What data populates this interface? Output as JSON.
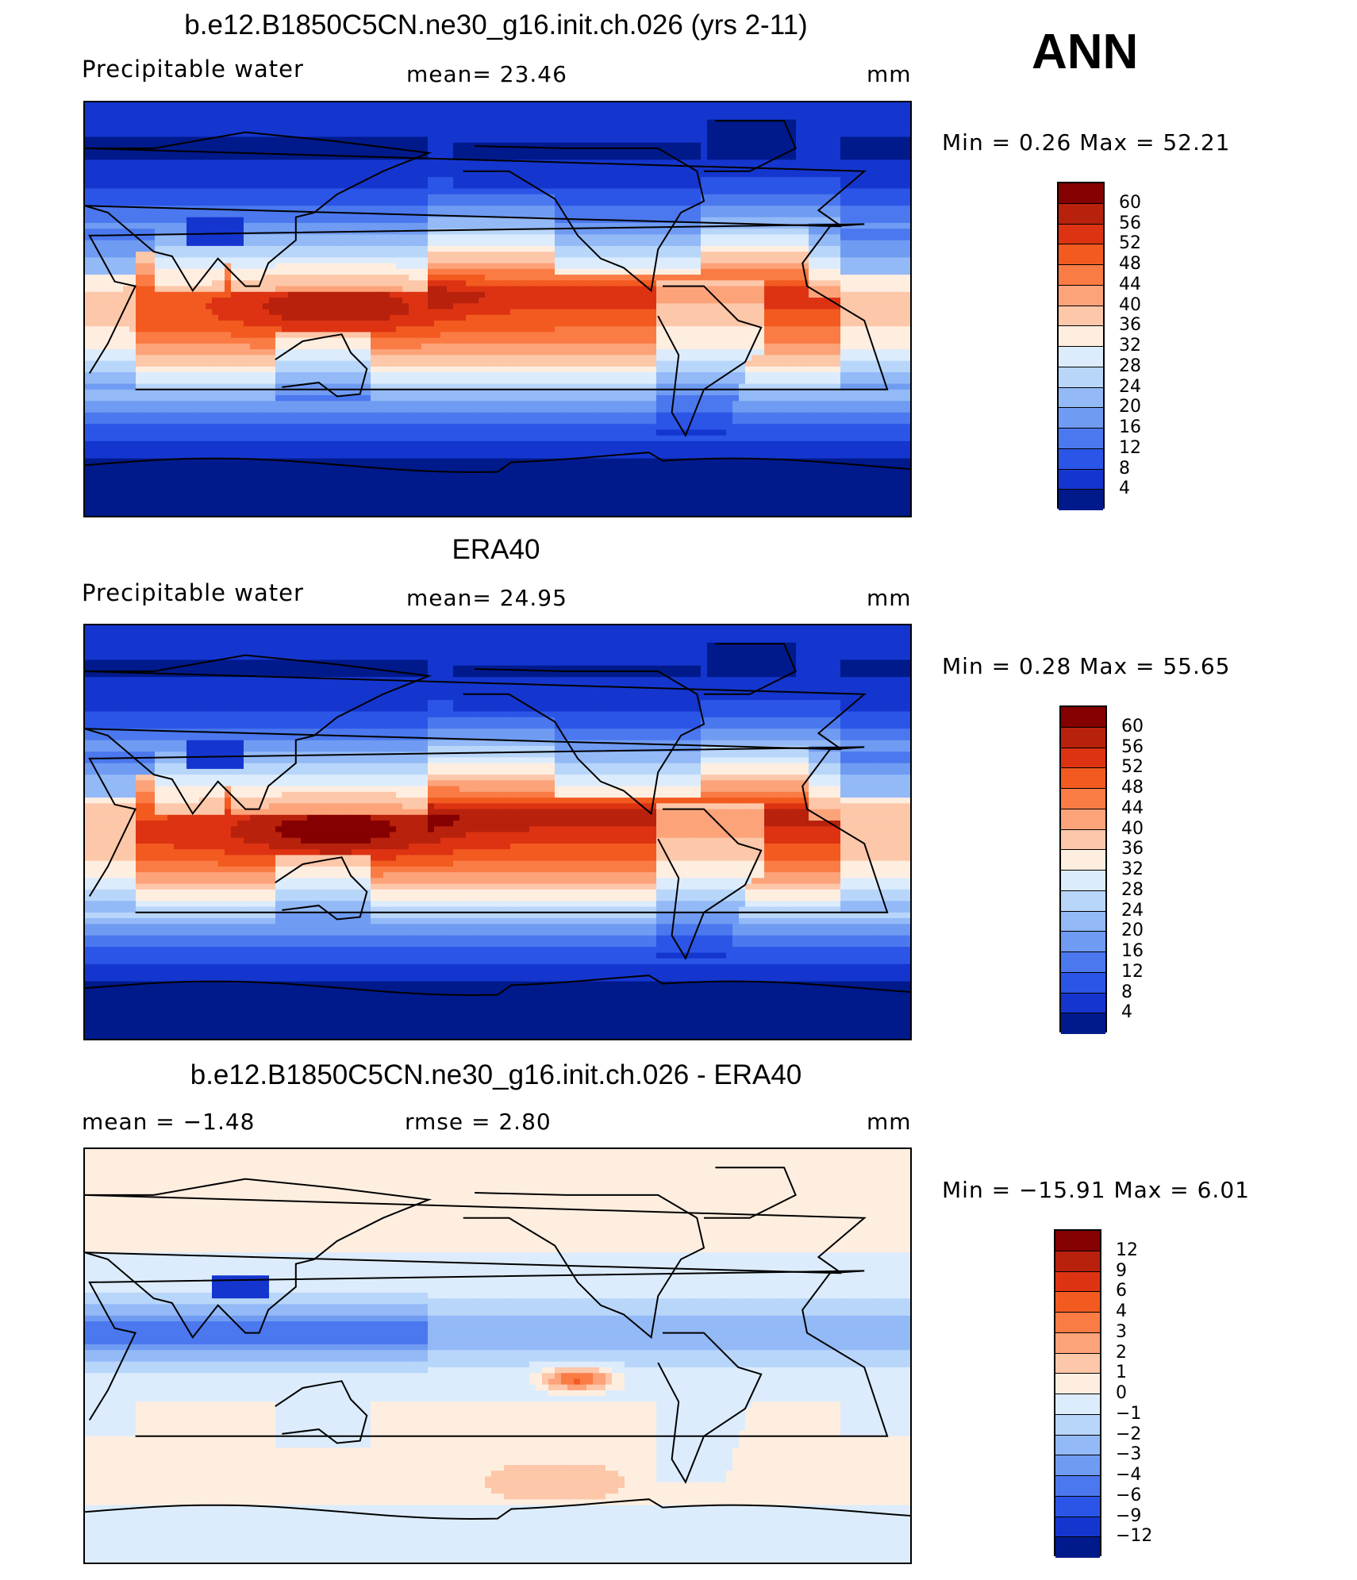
{
  "figure": {
    "season": "ANN"
  },
  "panels": [
    {
      "id": "model",
      "title": "b.e12.B1850C5CN.ne30_g16.init.ch.026 (yrs 2-11)",
      "variable": "Precipitable  water",
      "stat_left": "",
      "stat_mid": "mean=   23.46",
      "units": "mm",
      "minmax": "Min  =     0.26  Max  =    52.21",
      "levels": [
        "60",
        "56",
        "52",
        "48",
        "44",
        "40",
        "36",
        "32",
        "28",
        "24",
        "20",
        "16",
        "12",
        "8",
        "4"
      ],
      "colors": [
        "#850000",
        "#b8210c",
        "#dd3312",
        "#f25a20",
        "#fa7c44",
        "#fca37a",
        "#fdc7a9",
        "#feeee0",
        "#dcecfc",
        "#b8d6fa",
        "#93b9f7",
        "#6f9bf2",
        "#4b78ee",
        "#2b55e6",
        "#1436cf",
        "#001a8c"
      ],
      "field": "pw_model"
    },
    {
      "id": "obs",
      "title": "ERA40",
      "variable": "Precipitable  water",
      "stat_left": "",
      "stat_mid": "mean=   24.95",
      "units": "mm",
      "minmax": "Min  =     0.28  Max  =    55.65",
      "levels": [
        "60",
        "56",
        "52",
        "48",
        "44",
        "40",
        "36",
        "32",
        "28",
        "24",
        "20",
        "16",
        "12",
        "8",
        "4"
      ],
      "colors": [
        "#850000",
        "#b8210c",
        "#dd3312",
        "#f25a20",
        "#fa7c44",
        "#fca37a",
        "#fdc7a9",
        "#feeee0",
        "#dcecfc",
        "#b8d6fa",
        "#93b9f7",
        "#6f9bf2",
        "#4b78ee",
        "#2b55e6",
        "#1436cf",
        "#001a8c"
      ],
      "field": "pw_obs"
    },
    {
      "id": "diff",
      "title": "b.e12.B1850C5CN.ne30_g16.init.ch.026 - ERA40",
      "variable": "",
      "stat_left": "mean  =    −1.48",
      "stat_mid": "rmse  =     2.80",
      "units": "mm",
      "minmax": "Min  =  −15.91  Max  =     6.01",
      "levels": [
        "12",
        "9",
        "6",
        "4",
        "3",
        "2",
        "1",
        "0",
        "−1",
        "−2",
        "−3",
        "−4",
        "−6",
        "−9",
        "−12"
      ],
      "colors": [
        "#850000",
        "#b8210c",
        "#dd3312",
        "#f25a20",
        "#fa7c44",
        "#fca37a",
        "#fdc7a9",
        "#feeee0",
        "#dcecfc",
        "#b8d6fa",
        "#93b9f7",
        "#6f9bf2",
        "#4b78ee",
        "#2b55e6",
        "#1436cf",
        "#001a8c"
      ],
      "field": "pw_diff"
    }
  ]
}
